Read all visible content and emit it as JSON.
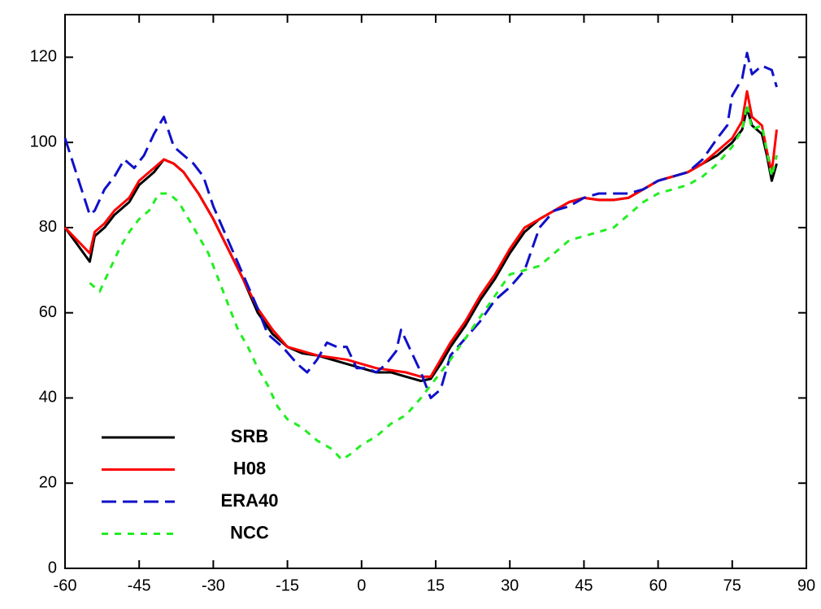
{
  "chart_data": {
    "type": "line",
    "xlim": [
      -60,
      90
    ],
    "xticks": [
      -60,
      -45,
      -30,
      -15,
      0,
      15,
      30,
      45,
      60,
      75,
      90
    ],
    "ylim": [
      0,
      130
    ],
    "yticks": [
      0,
      20,
      40,
      60,
      80,
      100,
      120
    ],
    "series": [
      {
        "name": "SRB",
        "color": "#000000",
        "dash": "none",
        "x": [
          -60,
          -55,
          -54,
          -52,
          -50,
          -47,
          -45,
          -42,
          -40,
          -38,
          -36,
          -33,
          -30,
          -27,
          -24,
          -21,
          -18,
          -15,
          -12,
          -9,
          -6,
          -3,
          0,
          3,
          6,
          9,
          12,
          14,
          16,
          18,
          21,
          24,
          27,
          30,
          33,
          36,
          39,
          42,
          45,
          48,
          51,
          54,
          57,
          60,
          63,
          66,
          69,
          72,
          75,
          77,
          78,
          79,
          81,
          82,
          83,
          84
        ],
        "values": [
          80,
          72,
          78,
          80,
          83,
          86,
          90,
          93,
          96,
          95,
          93,
          88,
          82,
          75,
          68,
          60,
          55,
          52,
          50.5,
          50,
          49,
          48,
          47,
          46,
          46,
          45,
          44,
          44.5,
          48,
          52,
          57,
          63,
          68,
          74,
          79,
          82,
          84,
          86,
          87,
          86.5,
          86.5,
          87,
          89,
          91,
          92,
          93,
          95,
          97,
          100,
          103,
          108,
          104,
          102,
          97,
          91,
          95
        ]
      },
      {
        "name": "H08",
        "color": "#ff0000",
        "dash": "none",
        "x": [
          -60,
          -55,
          -54,
          -52,
          -50,
          -47,
          -45,
          -42,
          -40,
          -38,
          -36,
          -33,
          -30,
          -27,
          -24,
          -21,
          -18,
          -15,
          -12,
          -9,
          -6,
          -3,
          0,
          3,
          6,
          9,
          12,
          14,
          16,
          18,
          21,
          24,
          27,
          30,
          33,
          36,
          39,
          42,
          45,
          48,
          51,
          54,
          57,
          60,
          63,
          66,
          69,
          72,
          75,
          77,
          78,
          79,
          81,
          82,
          83,
          84
        ],
        "values": [
          80,
          74,
          79,
          81,
          84,
          87,
          91,
          94,
          96,
          95,
          93,
          88,
          82,
          75,
          68,
          61,
          56,
          52,
          51,
          50,
          49.5,
          49,
          48,
          47,
          46.5,
          46,
          45,
          45,
          49,
          53,
          58,
          64,
          69,
          75,
          80,
          82,
          84,
          86,
          87,
          86.5,
          86.5,
          87,
          89,
          91,
          92,
          93,
          95,
          98,
          101,
          105,
          112,
          106,
          104,
          98,
          93,
          103
        ]
      },
      {
        "name": "ERA40",
        "color": "#1010c8",
        "dash": "18,8",
        "x": [
          -60,
          -55,
          -54,
          -52,
          -50,
          -48,
          -46,
          -44,
          -42,
          -40,
          -38,
          -36,
          -34,
          -32,
          -30,
          -27,
          -24,
          -21,
          -19,
          -16,
          -13,
          -11,
          -9,
          -7,
          -5,
          -3,
          -1,
          1,
          3,
          5,
          7,
          8,
          10,
          12,
          14,
          16,
          18,
          21,
          24,
          27,
          30,
          33,
          36,
          39,
          42,
          45,
          48,
          51,
          54,
          57,
          60,
          63,
          66,
          69,
          72,
          74,
          75,
          77,
          78,
          79,
          81,
          83,
          84
        ],
        "values": [
          101,
          83,
          84,
          89,
          92,
          96,
          94,
          97,
          102,
          106,
          99,
          97,
          95,
          92,
          85,
          77,
          69,
          61,
          55,
          52,
          48,
          46,
          49,
          53,
          52,
          52,
          47,
          47,
          46,
          48,
          51,
          56,
          51,
          46,
          40,
          42,
          50,
          54,
          58,
          63,
          66,
          70,
          80,
          84,
          85,
          87,
          88,
          88,
          88,
          89,
          91,
          92,
          93,
          96,
          101,
          104,
          111,
          115,
          121,
          116,
          118,
          117,
          113
        ]
      },
      {
        "name": "NCC",
        "color": "#22ee22",
        "dash": "8,8",
        "x": [
          -55,
          -53,
          -51,
          -49,
          -47,
          -45,
          -43,
          -41,
          -39,
          -37,
          -35,
          -33,
          -31,
          -29,
          -27,
          -25,
          -23,
          -21,
          -19,
          -17,
          -15,
          -12,
          -9,
          -6,
          -4,
          -2,
          0,
          3,
          6,
          9,
          12,
          14,
          16,
          18,
          21,
          24,
          27,
          30,
          33,
          36,
          39,
          42,
          45,
          48,
          51,
          54,
          57,
          60,
          63,
          66,
          69,
          72,
          75,
          77,
          78,
          79,
          81,
          83,
          84
        ],
        "values": [
          67,
          65,
          70,
          75,
          79,
          82,
          84,
          88,
          88,
          86,
          82,
          78,
          74,
          68,
          62,
          56,
          52,
          47,
          43,
          38,
          35,
          33,
          30,
          28,
          25.5,
          27,
          29,
          31,
          34,
          36,
          40,
          43,
          46,
          49,
          54,
          59,
          64,
          69,
          70,
          71,
          74,
          77,
          78,
          79,
          80,
          83,
          86,
          88,
          89,
          90,
          92,
          95,
          99,
          103,
          109,
          103,
          104,
          92,
          97
        ]
      }
    ]
  }
}
